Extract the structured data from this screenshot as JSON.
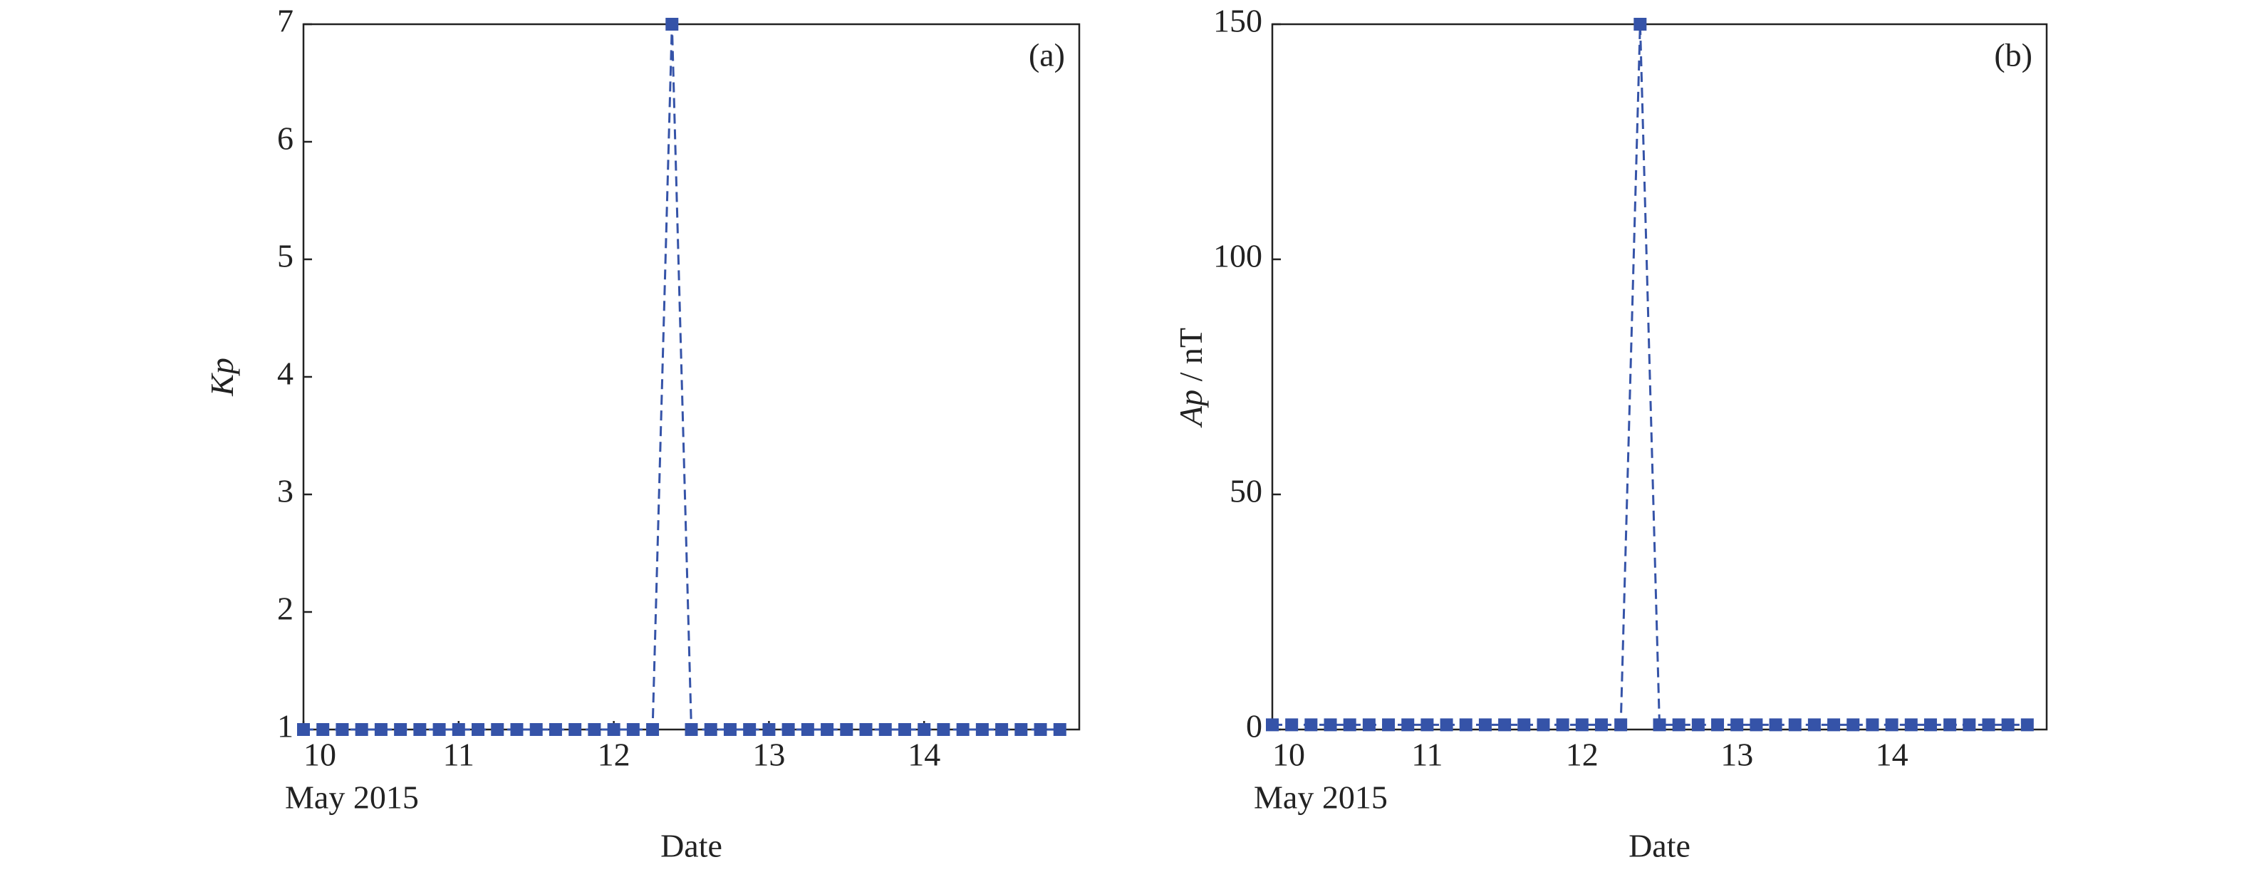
{
  "chart_data": [
    {
      "type": "line",
      "panel_label": "(a)",
      "ylabel": "Kp",
      "xlabel": "Date",
      "x_sublabel": "May 2015",
      "x": [
        10,
        10.125,
        10.25,
        10.375,
        10.5,
        10.625,
        10.75,
        10.875,
        11,
        11.125,
        11.25,
        11.375,
        11.5,
        11.625,
        11.75,
        11.875,
        12,
        12.125,
        12.25,
        12.375,
        12.5,
        12.625,
        12.75,
        12.875,
        13,
        13.125,
        13.25,
        13.375,
        13.5,
        13.625,
        13.75,
        13.875,
        14,
        14.125,
        14.25,
        14.375,
        14.5,
        14.625,
        14.75,
        14.875
      ],
      "series": [
        {
          "color": "#3553a8",
          "values": [
            1,
            1,
            1,
            1,
            1,
            1,
            1,
            1,
            1,
            1,
            1,
            1,
            1,
            1,
            1,
            1,
            1,
            1,
            1,
            7,
            1,
            1,
            1,
            1,
            1,
            1,
            1,
            1,
            1,
            1,
            1,
            1,
            1,
            1,
            1,
            1,
            1,
            1,
            1,
            1
          ]
        }
      ],
      "xlim": [
        10,
        15
      ],
      "xticks": [
        10,
        11,
        12,
        13,
        14
      ],
      "ylim": [
        1,
        7
      ],
      "yticks": [
        1,
        2,
        3,
        4,
        5,
        6,
        7
      ],
      "grid": false,
      "line_style": "dashed",
      "marker": "square"
    },
    {
      "type": "line",
      "panel_label": "(b)",
      "ylabel": "Ap",
      "ylabel_unit": "/ nT",
      "xlabel": "Date",
      "x_sublabel": "May 2015",
      "x": [
        10,
        10.125,
        10.25,
        10.375,
        10.5,
        10.625,
        10.75,
        10.875,
        11,
        11.125,
        11.25,
        11.375,
        11.5,
        11.625,
        11.75,
        11.875,
        12,
        12.125,
        12.25,
        12.375,
        12.5,
        12.625,
        12.75,
        12.875,
        13,
        13.125,
        13.25,
        13.375,
        13.5,
        13.625,
        13.75,
        13.875,
        14,
        14.125,
        14.25,
        14.375,
        14.5,
        14.625,
        14.75,
        14.875
      ],
      "series": [
        {
          "color": "#3553a8",
          "values": [
            1,
            1,
            1,
            1,
            1,
            1,
            1,
            1,
            1,
            1,
            1,
            1,
            1,
            1,
            1,
            1,
            1,
            1,
            1,
            150,
            1,
            1,
            1,
            1,
            1,
            1,
            1,
            1,
            1,
            1,
            1,
            1,
            1,
            1,
            1,
            1,
            1,
            1,
            1,
            1
          ]
        }
      ],
      "xlim": [
        10,
        15
      ],
      "xticks": [
        10,
        11,
        12,
        13,
        14
      ],
      "ylim": [
        0,
        150
      ],
      "yticks": [
        0,
        50,
        100,
        150
      ],
      "grid": false,
      "line_style": "dashed",
      "marker": "square"
    }
  ]
}
